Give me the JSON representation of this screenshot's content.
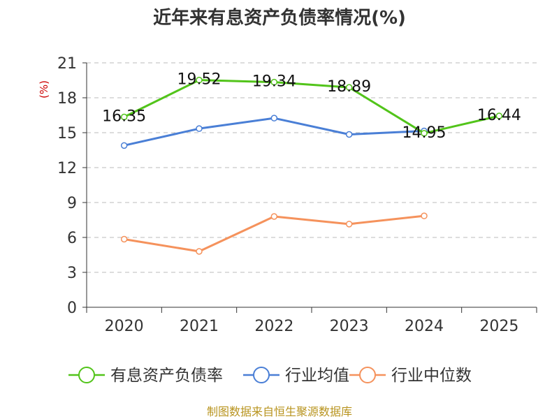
{
  "chart_data": {
    "type": "line",
    "title": "近年来有息资产负债率情况(%)",
    "ylabel": "(%)",
    "xlabel": "",
    "categories": [
      "2020",
      "2021",
      "2022",
      "2023",
      "2024",
      "2025"
    ],
    "ylim": [
      0,
      21
    ],
    "yticks": [
      0,
      3,
      6,
      9,
      12,
      15,
      18,
      21
    ],
    "grid": true,
    "legend_position": "bottom",
    "series": [
      {
        "name": "有息资产负债率",
        "color": "#52c41a",
        "values": [
          16.35,
          19.52,
          19.34,
          18.89,
          14.95,
          16.44
        ],
        "labels": [
          "16.35",
          "19.52",
          "19.34",
          "18.89",
          "14.95",
          "16.44"
        ]
      },
      {
        "name": "行业均值",
        "color": "#4a7fd6",
        "values": [
          13.9,
          15.35,
          16.25,
          14.85,
          15.15,
          null
        ]
      },
      {
        "name": "行业中位数",
        "color": "#f5925c",
        "values": [
          5.85,
          4.8,
          7.8,
          7.15,
          7.85,
          null
        ]
      }
    ]
  },
  "source": "制图数据来自恒生聚源数据库"
}
